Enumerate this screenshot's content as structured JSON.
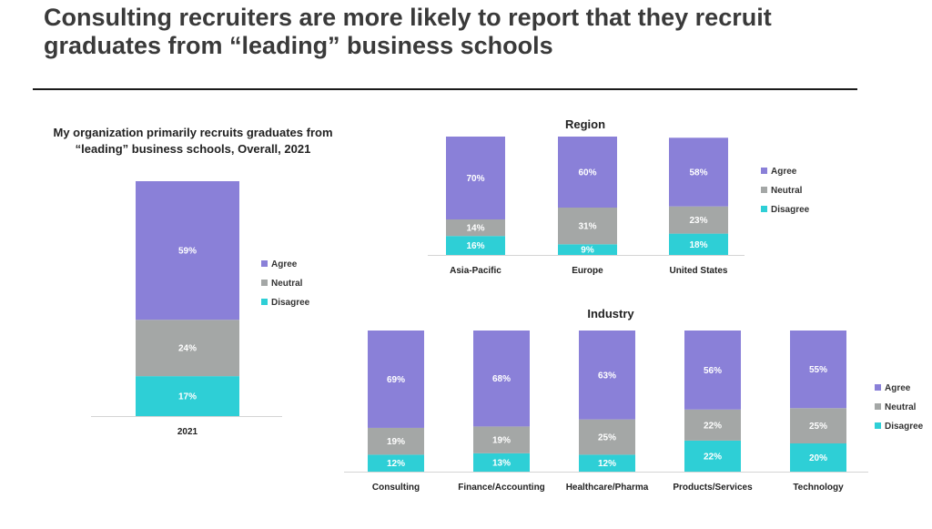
{
  "title": "Consulting recruiters are more likely to report that they recruit graduates from “leading” business schools",
  "colors": {
    "Agree": "#8a80d8",
    "Neutral": "#a4a7a6",
    "Disagree": "#2ecfd6"
  },
  "chart_data": [
    {
      "type": "bar",
      "stacked": true,
      "title": "My organization primarily recruits graduates from “leading” business schools, Overall, 2021",
      "categories": [
        "2021"
      ],
      "series": [
        {
          "name": "Agree",
          "values": [
            59
          ]
        },
        {
          "name": "Neutral",
          "values": [
            24
          ]
        },
        {
          "name": "Disagree",
          "values": [
            17
          ]
        }
      ],
      "value_format": "percent",
      "legend_position": "right"
    },
    {
      "type": "bar",
      "stacked": true,
      "title": "Region",
      "categories": [
        "Asia-Pacific",
        "Europe",
        "United States"
      ],
      "series": [
        {
          "name": "Agree",
          "values": [
            70,
            60,
            58
          ]
        },
        {
          "name": "Neutral",
          "values": [
            14,
            31,
            23
          ]
        },
        {
          "name": "Disagree",
          "values": [
            16,
            9,
            18
          ]
        }
      ],
      "value_format": "percent",
      "legend_position": "right"
    },
    {
      "type": "bar",
      "stacked": true,
      "title": "Industry",
      "categories": [
        "Consulting",
        "Finance/Accounting",
        "Healthcare/Pharma",
        "Products/Services",
        "Technology"
      ],
      "series": [
        {
          "name": "Agree",
          "values": [
            69,
            68,
            63,
            56,
            55
          ]
        },
        {
          "name": "Neutral",
          "values": [
            19,
            19,
            25,
            22,
            25
          ]
        },
        {
          "name": "Disagree",
          "values": [
            12,
            13,
            12,
            22,
            20
          ]
        }
      ],
      "value_format": "percent",
      "legend_position": "right"
    }
  ]
}
